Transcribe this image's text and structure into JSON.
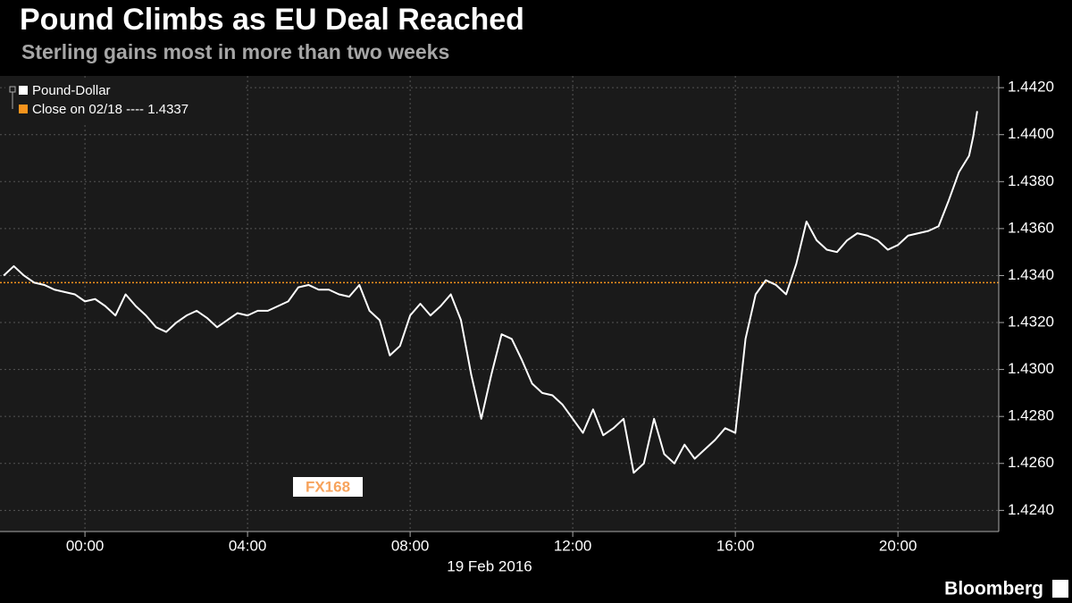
{
  "chart_data": {
    "type": "line",
    "title": "Pound Climbs as EU Deal Reached",
    "subtitle": "Sterling gains most in more than two weeks",
    "xlabel": "19 Feb 2016",
    "source": "Bloomberg",
    "watermark": "FX168",
    "x": [
      -2.0,
      -1.75,
      -1.5,
      -1.25,
      -1.0,
      -0.75,
      -0.5,
      -0.25,
      0,
      0.25,
      0.5,
      0.75,
      1.0,
      1.25,
      1.5,
      1.75,
      2.0,
      2.25,
      2.5,
      2.75,
      3.0,
      3.25,
      3.5,
      3.75,
      4.0,
      4.25,
      4.5,
      4.75,
      5.0,
      5.25,
      5.5,
      5.75,
      6.0,
      6.25,
      6.5,
      6.75,
      7.0,
      7.25,
      7.5,
      7.75,
      8.0,
      8.25,
      8.5,
      8.75,
      9.0,
      9.25,
      9.5,
      9.75,
      10.0,
      10.25,
      10.5,
      10.75,
      11.0,
      11.25,
      11.5,
      11.75,
      12.0,
      12.25,
      12.5,
      12.75,
      13.0,
      13.25,
      13.5,
      13.75,
      14.0,
      14.25,
      14.5,
      14.75,
      15.0,
      15.25,
      15.5,
      15.75,
      16.0,
      16.25,
      16.5,
      16.75,
      17.0,
      17.25,
      17.5,
      17.75,
      18.0,
      18.25,
      18.5,
      18.75,
      19.0,
      19.25,
      19.5,
      19.75,
      20.0,
      20.25,
      20.5,
      20.75,
      21.0,
      21.25,
      21.5,
      21.75,
      21.85,
      21.95
    ],
    "series": [
      {
        "name": "Pound-Dollar",
        "color": "#ffffff",
        "values": [
          1.434,
          1.4344,
          1.434,
          1.4337,
          1.4336,
          1.4334,
          1.4333,
          1.4332,
          1.4329,
          1.433,
          1.4327,
          1.4323,
          1.4332,
          1.4327,
          1.4323,
          1.4318,
          1.4316,
          1.432,
          1.4323,
          1.4325,
          1.4322,
          1.4318,
          1.4321,
          1.4324,
          1.4323,
          1.4325,
          1.4325,
          1.4327,
          1.4329,
          1.4335,
          1.4336,
          1.4334,
          1.4334,
          1.4332,
          1.4331,
          1.4336,
          1.4325,
          1.4321,
          1.4306,
          1.431,
          1.4323,
          1.4328,
          1.4323,
          1.4327,
          1.4332,
          1.4321,
          1.4298,
          1.4279,
          1.4298,
          1.4315,
          1.4313,
          1.4304,
          1.4294,
          1.429,
          1.4289,
          1.4285,
          1.4279,
          1.4273,
          1.4283,
          1.4272,
          1.4275,
          1.4279,
          1.4256,
          1.426,
          1.4279,
          1.4264,
          1.426,
          1.4268,
          1.4262,
          1.4266,
          1.427,
          1.4275,
          1.4273,
          1.4313,
          1.4332,
          1.4338,
          1.4336,
          1.4332,
          1.4345,
          1.4363,
          1.4355,
          1.4351,
          1.435,
          1.4355,
          1.4358,
          1.4357,
          1.4355,
          1.4351,
          1.4353,
          1.4357,
          1.4358,
          1.4359,
          1.4361,
          1.4372,
          1.4384,
          1.4391,
          1.4399,
          1.441
        ]
      }
    ],
    "reference": {
      "label": "Close on 02/18 ---- 1.4337",
      "value": 1.4337,
      "color": "#f7941d"
    },
    "xlim": [
      -2.09,
      22.48
    ],
    "ylim": [
      1.4231,
      1.4425
    ],
    "xticks": [
      {
        "value": 0,
        "label": "00:00"
      },
      {
        "value": 4,
        "label": "04:00"
      },
      {
        "value": 8,
        "label": "08:00"
      },
      {
        "value": 12,
        "label": "12:00"
      },
      {
        "value": 16,
        "label": "16:00"
      },
      {
        "value": 20,
        "label": "20:00"
      }
    ],
    "yticks": [
      {
        "value": 1.424,
        "label": "1.4240"
      },
      {
        "value": 1.426,
        "label": "1.4260"
      },
      {
        "value": 1.428,
        "label": "1.4280"
      },
      {
        "value": 1.43,
        "label": "1.4300"
      },
      {
        "value": 1.432,
        "label": "1.4320"
      },
      {
        "value": 1.434,
        "label": "1.4340"
      },
      {
        "value": 1.436,
        "label": "1.4360"
      },
      {
        "value": 1.438,
        "label": "1.4380"
      },
      {
        "value": 1.44,
        "label": "1.4400"
      },
      {
        "value": 1.442,
        "label": "1.4420"
      }
    ],
    "grid": true
  }
}
